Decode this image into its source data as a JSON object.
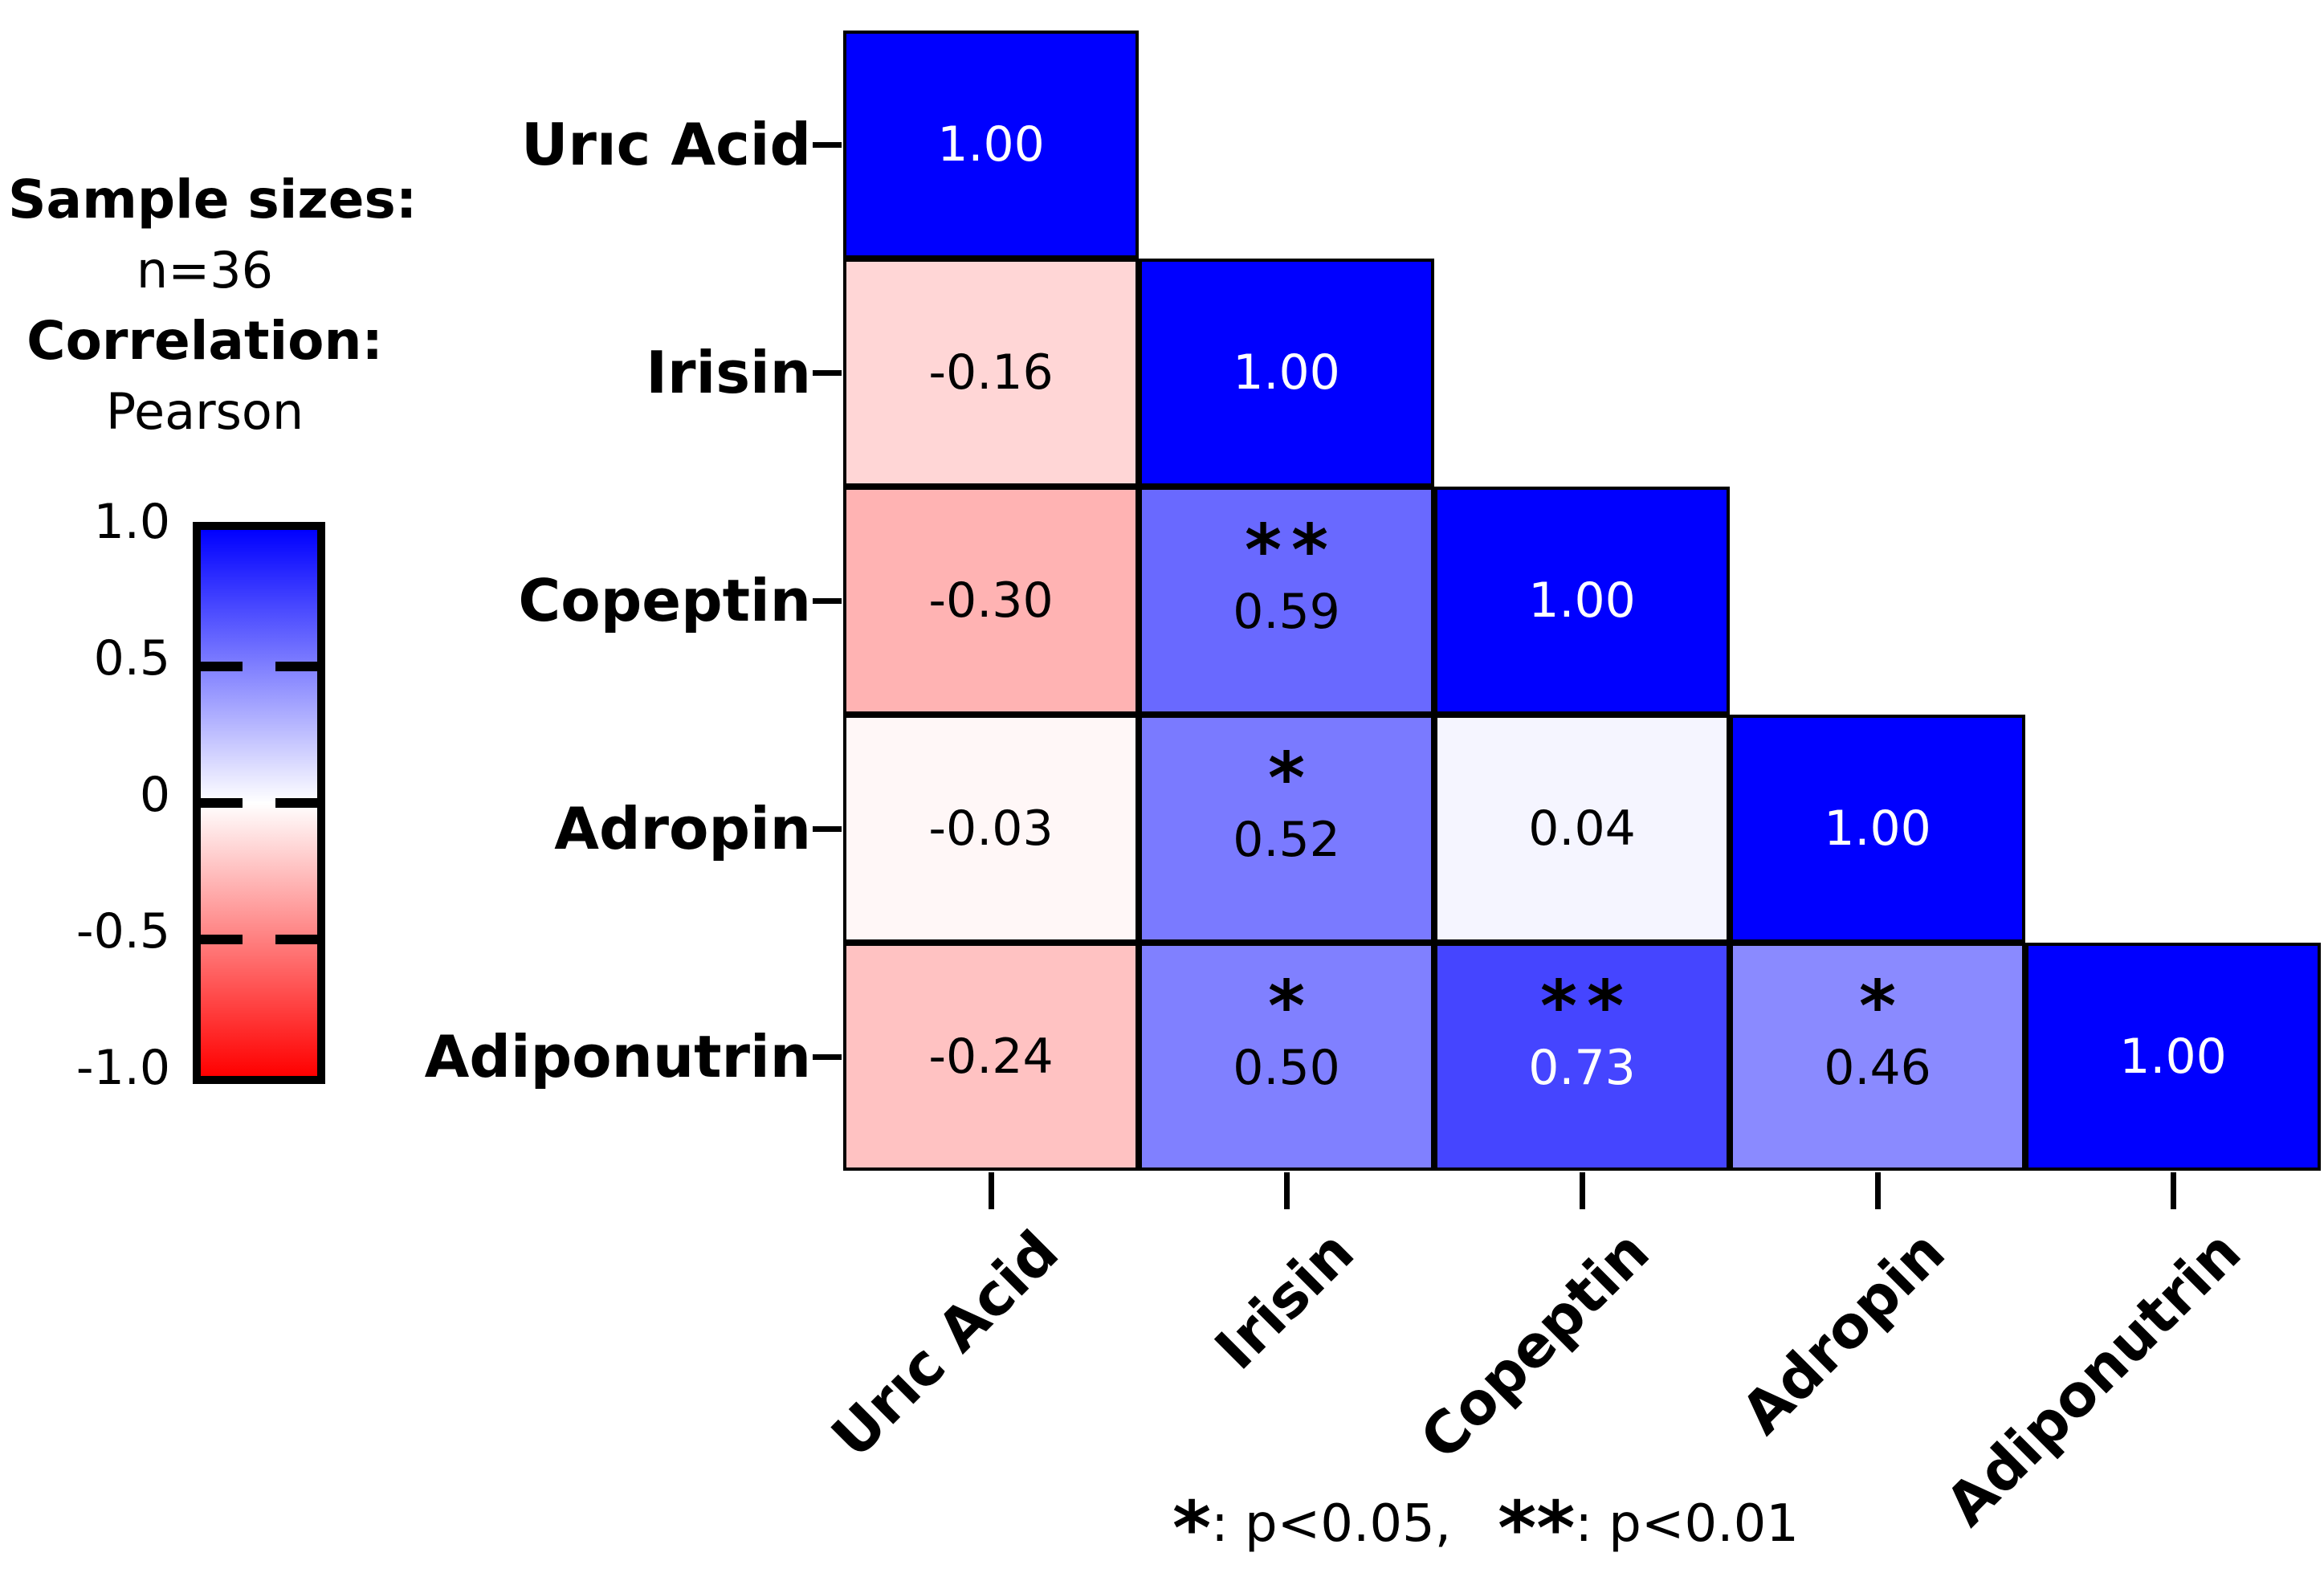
{
  "annotation": {
    "line1": "Sample sizes:",
    "line2": "n=36",
    "line3": "Correlation:",
    "line4": "Pearson"
  },
  "footnote": {
    "star1": "*",
    "text1": ": p<0.05,",
    "star2": "**",
    "text2": ": p<0.01"
  },
  "chart_data": {
    "type": "heatmap",
    "triangle": "lower",
    "variables": [
      "Urıc Acid",
      "Irisin",
      "Copeptin",
      "Adropin",
      "Adiponutrin"
    ],
    "x_labels": [
      "Urıc Acid",
      "Irisin",
      "Copeptin",
      "Adropin",
      "Adiponutrin"
    ],
    "y_labels": [
      "Urıc Acid",
      "Irisin",
      "Copeptin",
      "Adropin",
      "Adiponutrin"
    ],
    "value_range": [
      -1,
      1
    ],
    "colormap": {
      "positive": "#0000FF",
      "zero": "#FFFFFF",
      "negative": "#FF0000"
    },
    "white_text_threshold": 0.7,
    "colorbar": {
      "ticks": [
        "1.0",
        "0.5",
        "0",
        "-0.5",
        "-1.0"
      ],
      "tick_values": [
        1.0,
        0.5,
        0,
        -0.5,
        -1.0
      ]
    },
    "cells": [
      {
        "row": 0,
        "col": 0,
        "value": 1.0,
        "display": "1.00",
        "stars": ""
      },
      {
        "row": 1,
        "col": 0,
        "value": -0.16,
        "display": "-0.16",
        "stars": ""
      },
      {
        "row": 1,
        "col": 1,
        "value": 1.0,
        "display": "1.00",
        "stars": ""
      },
      {
        "row": 2,
        "col": 0,
        "value": -0.3,
        "display": "-0.30",
        "stars": ""
      },
      {
        "row": 2,
        "col": 1,
        "value": 0.59,
        "display": "0.59",
        "stars": "**"
      },
      {
        "row": 2,
        "col": 2,
        "value": 1.0,
        "display": "1.00",
        "stars": ""
      },
      {
        "row": 3,
        "col": 0,
        "value": -0.03,
        "display": "-0.03",
        "stars": ""
      },
      {
        "row": 3,
        "col": 1,
        "value": 0.52,
        "display": "0.52",
        "stars": "*"
      },
      {
        "row": 3,
        "col": 2,
        "value": 0.04,
        "display": "0.04",
        "stars": ""
      },
      {
        "row": 3,
        "col": 3,
        "value": 1.0,
        "display": "1.00",
        "stars": ""
      },
      {
        "row": 4,
        "col": 0,
        "value": -0.24,
        "display": "-0.24",
        "stars": ""
      },
      {
        "row": 4,
        "col": 1,
        "value": 0.5,
        "display": "0.50",
        "stars": "*"
      },
      {
        "row": 4,
        "col": 2,
        "value": 0.73,
        "display": "0.73",
        "stars": "**"
      },
      {
        "row": 4,
        "col": 3,
        "value": 0.46,
        "display": "0.46",
        "stars": "*"
      },
      {
        "row": 4,
        "col": 4,
        "value": 1.0,
        "display": "1.00",
        "stars": ""
      }
    ]
  }
}
